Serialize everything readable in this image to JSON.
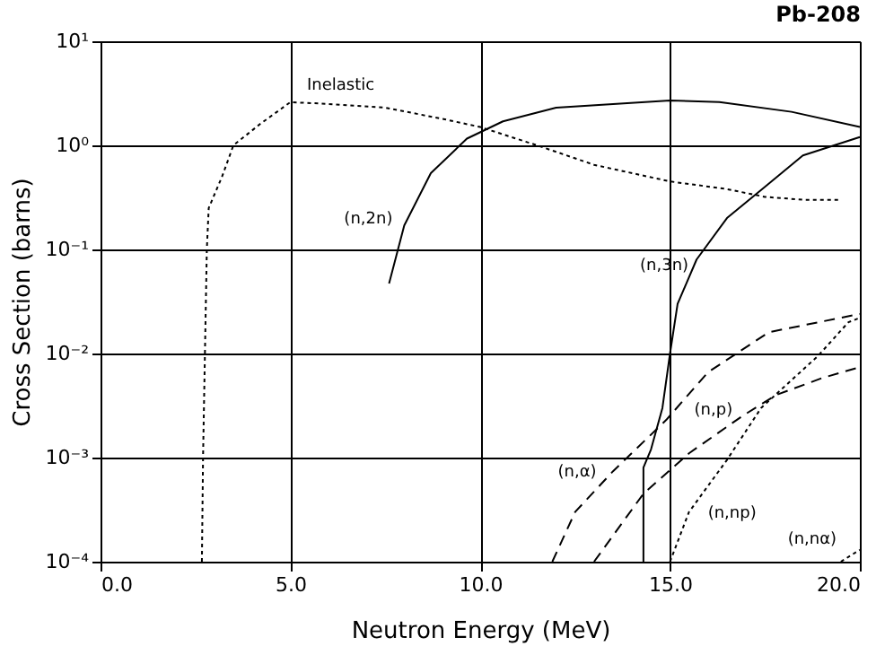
{
  "chart_data": {
    "type": "line",
    "title": "Pb-208",
    "xlabel": "Neutron Energy (MeV)",
    "ylabel": "Cross Section (barns)",
    "log": "y",
    "grid": true,
    "marker": "none",
    "xlim": [
      0,
      20
    ],
    "xticks": [
      {
        "value": 0,
        "label": "0.0"
      },
      {
        "value": 5,
        "label": "5.0"
      },
      {
        "value": 10,
        "label": "10.0"
      },
      {
        "value": 15,
        "label": "15.0"
      },
      {
        "value": 20,
        "label": "20.0"
      }
    ],
    "ylim": [
      0.0001,
      10
    ],
    "yticks": [
      {
        "value": 0.0001,
        "label": "10⁻⁴"
      },
      {
        "value": 0.001,
        "label": "10⁻³"
      },
      {
        "value": 0.01,
        "label": "10⁻²"
      },
      {
        "value": 0.1,
        "label": "10⁻¹"
      },
      {
        "value": 1,
        "label": "10⁰"
      },
      {
        "value": 10,
        "label": "10¹"
      }
    ],
    "series": [
      {
        "name": "Inelastic",
        "color": "#000000",
        "line_style": "dotted",
        "x": [
          2.67,
          2.7,
          2.75,
          2.8,
          2.85,
          3.2,
          3.5,
          4.2,
          5.0,
          6.0,
          7.5,
          9.0,
          10.0,
          11.5,
          13.0,
          15.0,
          16.5,
          17.5,
          18.5,
          19.5
        ],
        "values": [
          0.0001,
          0.001,
          0.01,
          0.1,
          0.25,
          0.5,
          1.0,
          1.6,
          2.6,
          2.5,
          2.3,
          1.8,
          1.5,
          1.0,
          0.65,
          0.45,
          0.38,
          0.32,
          0.3,
          0.3
        ]
      },
      {
        "name": "(n,2n)",
        "color": "#000000",
        "line_style": "solid",
        "x": [
          7.6,
          8.0,
          8.7,
          9.65,
          10.6,
          12.0,
          15.0,
          16.3,
          18.2,
          20.0
        ],
        "values": [
          0.047,
          0.17,
          0.54,
          1.16,
          1.7,
          2.3,
          2.7,
          2.6,
          2.1,
          1.5
        ]
      },
      {
        "name": "(n,3n)",
        "color": "#000000",
        "line_style": "solid",
        "x": [
          14.3,
          14.3,
          14.5,
          14.8,
          15.0,
          15.2,
          15.7,
          16.5,
          17.5,
          18.5,
          20.0
        ],
        "values": [
          0.0001,
          0.0008,
          0.0012,
          0.003,
          0.01,
          0.03,
          0.08,
          0.2,
          0.4,
          0.8,
          1.2
        ]
      },
      {
        "name": "(n,α)",
        "color": "#000000",
        "line_style": "dashed",
        "x": [
          11.9,
          12.5,
          13.5,
          14.9,
          16.0,
          17.6,
          20.0
        ],
        "values": [
          0.0001,
          0.0003,
          0.00074,
          0.0023,
          0.0066,
          0.016,
          0.024
        ]
      },
      {
        "name": "(n,p)",
        "color": "#000000",
        "line_style": "dashed",
        "x": [
          13.0,
          14.3,
          15.5,
          16.9,
          17.8,
          19.0,
          20.0
        ],
        "values": [
          0.0001,
          0.00045,
          0.0011,
          0.0025,
          0.004,
          0.0058,
          0.0074
        ]
      },
      {
        "name": "(n,np)",
        "color": "#000000",
        "line_style": "dotted",
        "x": [
          15.0,
          15.5,
          16.5,
          17.4,
          18.9,
          19.7,
          20.0
        ],
        "values": [
          0.0001,
          0.0003,
          0.00095,
          0.003,
          0.0095,
          0.02,
          0.022
        ]
      },
      {
        "name": "(n,nα)",
        "color": "#000000",
        "line_style": "dotted",
        "x": [
          19.5,
          20.0
        ],
        "values": [
          0.0001,
          0.00013
        ]
      }
    ]
  }
}
